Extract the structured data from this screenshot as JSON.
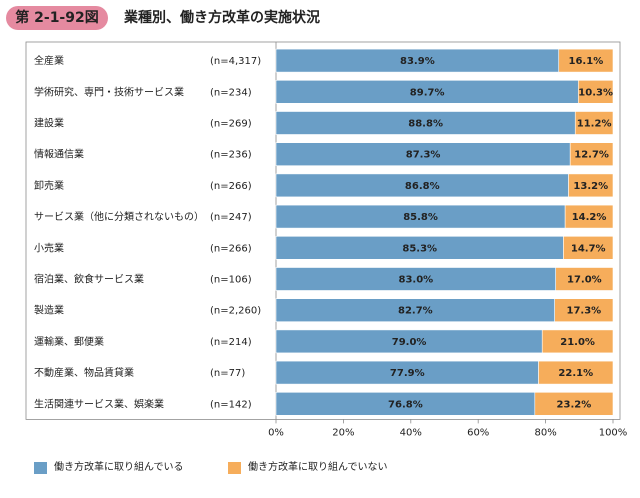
{
  "header": {
    "badge": "第 2-1-92図",
    "title": "業種別、働き方改革の実施状況"
  },
  "colors": {
    "badge": "#e58aa0",
    "series_implemented": "#6a9ec6",
    "series_not_implemented": "#f6ad5b",
    "border": "#8c8c8c"
  },
  "chart_data": {
    "type": "bar",
    "orientation": "horizontal-stacked-100",
    "categories": [
      "全産業",
      "学術研究、専門・技術サービス業",
      "建設業",
      "情報通信業",
      "卸売業",
      "サービス業（他に分類されないもの）",
      "小売業",
      "宿泊業、飲食サービス業",
      "製造業",
      "運輸業、郵便業",
      "不動産業、物品賃貸業",
      "生活関連サービス業、娯楽業"
    ],
    "sample_sizes": [
      "(n=4,317)",
      "(n=234)",
      "(n=269)",
      "(n=236)",
      "(n=266)",
      "(n=247)",
      "(n=266)",
      "(n=106)",
      "(n=2,260)",
      "(n=214)",
      "(n=77)",
      "(n=142)"
    ],
    "series": [
      {
        "name": "働き方改革に取り組んでいる",
        "values": [
          83.9,
          89.7,
          88.8,
          87.3,
          86.8,
          85.8,
          85.3,
          83.0,
          82.7,
          79.0,
          77.9,
          76.8
        ],
        "labels": [
          "83.9%",
          "89.7%",
          "88.8%",
          "87.3%",
          "86.8%",
          "85.8%",
          "85.3%",
          "83.0%",
          "82.7%",
          "79.0%",
          "77.9%",
          "76.8%"
        ]
      },
      {
        "name": "働き方改革に取り組んでいない",
        "values": [
          16.1,
          10.3,
          11.2,
          12.7,
          13.2,
          14.2,
          14.7,
          17.0,
          17.3,
          21.0,
          22.1,
          23.2
        ],
        "labels": [
          "16.1%",
          "10.3%",
          "11.2%",
          "12.7%",
          "13.2%",
          "14.2%",
          "14.7%",
          "17.0%",
          "17.3%",
          "21.0%",
          "22.1%",
          "23.2%"
        ]
      }
    ],
    "xlim": [
      0,
      100
    ],
    "xticks": [
      "0%",
      "20%",
      "40%",
      "60%",
      "80%",
      "100%"
    ],
    "legend_position": "bottom",
    "grid": false
  }
}
